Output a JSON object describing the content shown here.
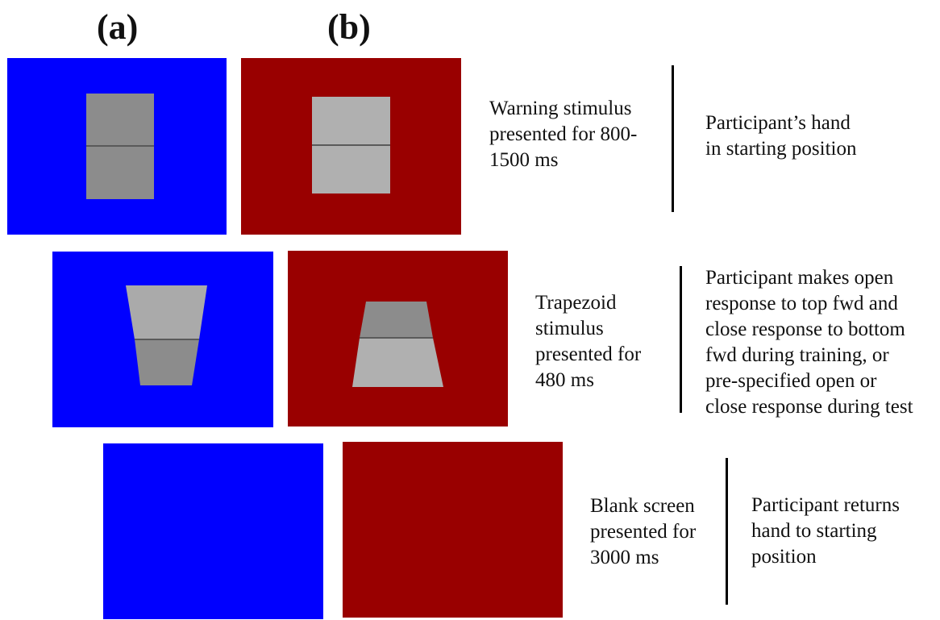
{
  "columns": {
    "a": "(a)",
    "b": "(b)"
  },
  "colors": {
    "condition_a_background": "#0000ff",
    "condition_b_background": "#990000",
    "stimulus_dark_gray": "#8c8c8c",
    "stimulus_light_gray": "#b0b0b0",
    "divider_line": "#5a5a5a"
  },
  "rows": [
    {
      "event": [
        "Warning stimulus",
        "presented for 800-",
        "1500 ms"
      ],
      "response": [
        "Participant’s hand",
        "in starting position"
      ]
    },
    {
      "event": [
        "Trapezoid",
        "stimulus",
        "presented for",
        "480 ms"
      ],
      "response": [
        "Participant makes open",
        "response to top fwd and",
        "close response to bottom",
        "fwd during training, or",
        "pre-specified open or",
        "close response during test"
      ]
    },
    {
      "event": [
        "Blank screen",
        "presented for",
        "3000 ms"
      ],
      "response": [
        "Participant returns",
        "hand to starting",
        "position"
      ]
    }
  ]
}
